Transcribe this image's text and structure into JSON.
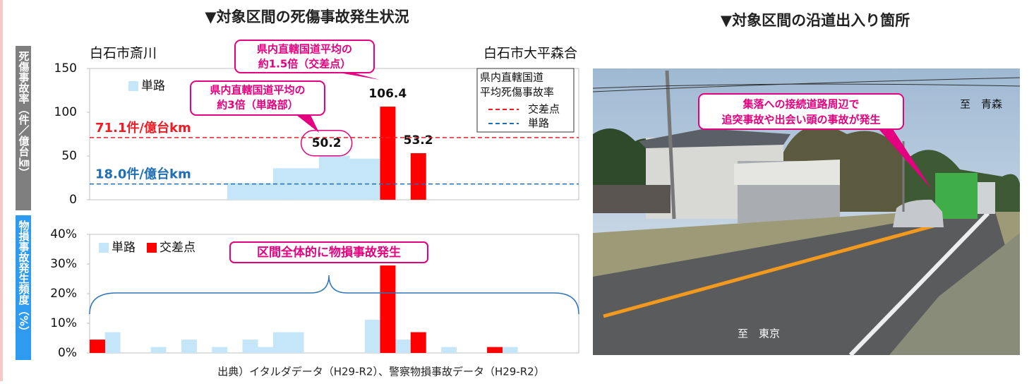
{
  "header": {
    "left_title": "▼対象区間の死傷事故発生状況",
    "right_title": "▼対象区間の沿道出入り箇所"
  },
  "chart_data": [
    {
      "type": "bar",
      "y_label": "死傷事故率（件／億台㎞）",
      "place_left": "白石市斎川",
      "place_right": "白石市大平森合",
      "categories": [
        null,
        null,
        null,
        null,
        null,
        null,
        null,
        null,
        null,
        null,
        null,
        null,
        null,
        null,
        null,
        null,
        null,
        null,
        null,
        null,
        null,
        null,
        null,
        null,
        null,
        null,
        null,
        null,
        null,
        null,
        null,
        null
      ],
      "series": [
        {
          "name": "単路",
          "color": "#c5e6f8",
          "values": [
            null,
            null,
            null,
            null,
            null,
            null,
            null,
            null,
            null,
            19,
            19,
            19,
            36,
            36,
            36,
            50.2,
            50.2,
            47,
            47,
            null,
            null,
            null,
            null,
            null,
            null,
            null,
            null,
            null,
            null,
            null,
            null,
            null
          ],
          "value_labels": [
            null,
            null,
            null,
            null,
            null,
            null,
            null,
            null,
            null,
            null,
            null,
            null,
            null,
            null,
            null,
            "50.2",
            null,
            null,
            null,
            null,
            null,
            null,
            null,
            null,
            null,
            null,
            null,
            null,
            null,
            null,
            null,
            null
          ]
        },
        {
          "color": "#ff0000",
          "values": [
            null,
            null,
            null,
            null,
            null,
            null,
            null,
            null,
            null,
            null,
            null,
            null,
            null,
            null,
            null,
            null,
            null,
            null,
            null,
            106.4,
            null,
            53.2,
            null,
            null,
            null,
            null,
            null,
            null,
            null,
            null,
            null,
            null
          ],
          "value_labels": [
            null,
            null,
            null,
            null,
            null,
            null,
            null,
            null,
            null,
            null,
            null,
            null,
            null,
            null,
            null,
            null,
            null,
            null,
            null,
            "106.4",
            null,
            "53.2",
            null,
            null,
            null,
            null,
            null,
            null,
            null,
            null,
            null,
            null
          ]
        }
      ],
      "ylim": [
        0,
        150
      ],
      "yticks": [
        0,
        50,
        100,
        150
      ],
      "ref_legend_title": [
        "県内直轄国道",
        "平均死傷事故率"
      ],
      "ref_lines": [
        {
          "name": "交差点",
          "value": 71.1,
          "label": "71.1件/億台km",
          "color": "#ee1c25"
        },
        {
          "name": "単路",
          "value": 18.0,
          "label": "18.0件/億台km",
          "color": "#1f6fb5"
        }
      ],
      "callouts": [
        {
          "lines": [
            "県内直轄国道平均の",
            "約1.5倍（交差点）"
          ]
        },
        {
          "lines": [
            "県内直轄国道平均の",
            "約3倍（単路部）"
          ]
        }
      ]
    },
    {
      "type": "bar",
      "y_label": "物損事故発生頻度（%）",
      "categories": [
        null,
        null,
        null,
        null,
        null,
        null,
        null,
        null,
        null,
        null,
        null,
        null,
        null,
        null,
        null,
        null,
        null,
        null,
        null,
        null,
        null,
        null,
        null,
        null,
        null,
        null,
        null,
        null,
        null,
        null,
        null,
        null
      ],
      "series": [
        {
          "name": "単路",
          "color": "#c5e6f8",
          "values": [
            null,
            7,
            null,
            null,
            2,
            null,
            4.5,
            null,
            2,
            null,
            4.5,
            2,
            7,
            7,
            null,
            null,
            null,
            null,
            11.2,
            null,
            4.5,
            null,
            null,
            2,
            null,
            null,
            null,
            2,
            null,
            null,
            null,
            null
          ]
        },
        {
          "name": "交差点",
          "color": "#ff0000",
          "values": [
            4.5,
            null,
            null,
            null,
            null,
            null,
            null,
            null,
            null,
            null,
            null,
            null,
            null,
            null,
            null,
            null,
            null,
            null,
            null,
            29.5,
            null,
            7,
            null,
            null,
            null,
            null,
            2,
            null,
            null,
            null,
            null,
            null
          ]
        }
      ],
      "ylim": [
        0,
        40
      ],
      "yticks": [
        {
          "value": 0,
          "label": "0%"
        },
        {
          "value": 10,
          "label": "10%"
        },
        {
          "value": 20,
          "label": "20%"
        },
        {
          "value": 30,
          "label": "30%"
        },
        {
          "value": 40,
          "label": "40%"
        }
      ],
      "annotation": "区間全体的に物損事故発生"
    }
  ],
  "source": "出典）イタルダデータ（H29-R2）、警察物損事故データ（H29-R2）",
  "photo": {
    "callout": [
      "集落への接続道路周辺で",
      "追突事故や出会い頭の事故が発生"
    ],
    "label_north": "至　青森",
    "label_south": "至　東京"
  }
}
